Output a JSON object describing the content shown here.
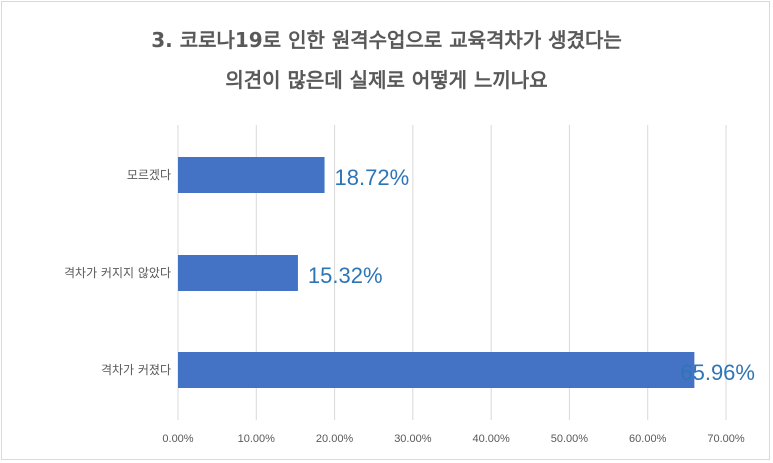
{
  "chart_data": {
    "type": "bar",
    "orientation": "horizontal",
    "title_lines": [
      "3. 코로나19로 인한 원격수업으로 교육격차가 생겼다는",
      "의견이 많은데 실제로 어떻게 느끼나요"
    ],
    "categories": [
      "모르겠다",
      "격차가 커지지 않았다",
      "격차가 커졌다"
    ],
    "values": [
      18.72,
      15.32,
      65.96
    ],
    "data_labels": [
      "18.72%",
      "15.32%",
      "65.96%"
    ],
    "xlim": [
      0,
      70
    ],
    "x_ticks": [
      "0.00%",
      "10.00%",
      "20.00%",
      "30.00%",
      "40.00%",
      "50.00%",
      "60.00%",
      "70.00%"
    ],
    "grid": true,
    "bar_color": "#4472c4",
    "label_color": "#2e75b6"
  }
}
